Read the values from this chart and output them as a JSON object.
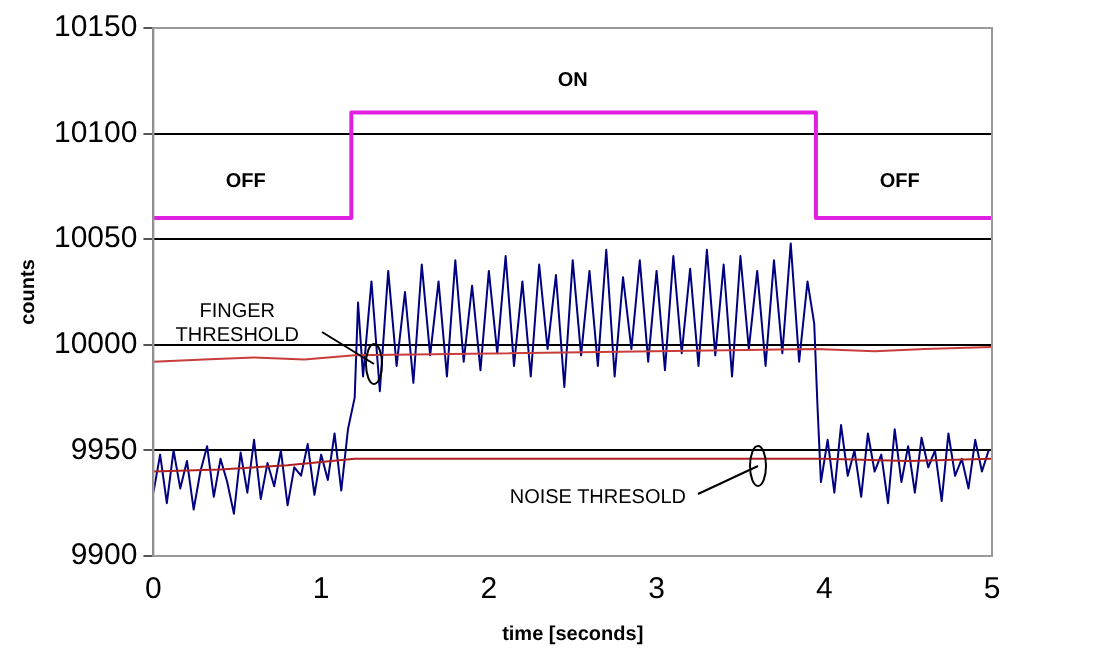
{
  "chart_data": {
    "type": "line",
    "xlabel": "time [seconds]",
    "ylabel": "counts",
    "xlim": [
      0,
      5
    ],
    "xticks": [
      0,
      1,
      2,
      3,
      4,
      5
    ],
    "ylim": [
      9900,
      10150
    ],
    "yticks": [
      9900,
      9950,
      10000,
      10050,
      10100,
      10150
    ],
    "grid": "y",
    "legend": false,
    "annotations": [
      "OFF",
      "ON",
      "OFF",
      "FINGER\nTHRESHOLD",
      "NOISE THRESOLD"
    ],
    "series": [
      {
        "color": "#000080",
        "x": [
          0,
          0.04,
          0.08,
          0.12,
          0.16,
          0.2,
          0.24,
          0.28,
          0.32,
          0.36,
          0.4,
          0.44,
          0.48,
          0.52,
          0.56,
          0.6,
          0.64,
          0.68,
          0.72,
          0.76,
          0.8,
          0.84,
          0.88,
          0.92,
          0.96,
          1,
          1.04,
          1.08,
          1.12,
          1.16,
          1.2,
          1.22,
          1.25,
          1.3,
          1.35,
          1.4,
          1.45,
          1.5,
          1.55,
          1.6,
          1.65,
          1.7,
          1.75,
          1.8,
          1.85,
          1.9,
          1.95,
          2,
          2.05,
          2.1,
          2.15,
          2.2,
          2.25,
          2.3,
          2.35,
          2.4,
          2.45,
          2.5,
          2.55,
          2.6,
          2.65,
          2.7,
          2.75,
          2.8,
          2.85,
          2.9,
          2.95,
          3,
          3.05,
          3.1,
          3.15,
          3.2,
          3.25,
          3.3,
          3.35,
          3.4,
          3.45,
          3.5,
          3.55,
          3.6,
          3.65,
          3.7,
          3.75,
          3.8,
          3.85,
          3.9,
          3.94,
          3.96,
          3.98,
          4.02,
          4.06,
          4.1,
          4.14,
          4.18,
          4.22,
          4.26,
          4.3,
          4.34,
          4.38,
          4.42,
          4.46,
          4.5,
          4.54,
          4.58,
          4.62,
          4.66,
          4.7,
          4.74,
          4.78,
          4.82,
          4.86,
          4.9,
          4.94,
          4.98
        ],
        "values": [
          9930,
          9948,
          9925,
          9950,
          9932,
          9945,
          9922,
          9940,
          9952,
          9928,
          9946,
          9935,
          9920,
          9949,
          9930,
          9955,
          9927,
          9944,
          9933,
          9950,
          9924,
          9942,
          9938,
          9953,
          9929,
          9948,
          9936,
          9958,
          9931,
          9960,
          9975,
          10020,
          9985,
          10030,
          9978,
          10035,
          9990,
          10025,
          9982,
          10038,
          9995,
          10030,
          9985,
          10040,
          9992,
          10028,
          9988,
          10035,
          9996,
          10042,
          9990,
          10030,
          9985,
          10038,
          9998,
          10033,
          9980,
          10040,
          9995,
          10035,
          9990,
          10045,
          9985,
          10032,
          9998,
          10040,
          9992,
          10035,
          9988,
          10042,
          9996,
          10036,
          9990,
          10045,
          9995,
          10038,
          9985,
          10042,
          9998,
          10035,
          9990,
          10040,
          9996,
          10048,
          9992,
          10030,
          10010,
          9970,
          9935,
          9955,
          9930,
          9962,
          9938,
          9950,
          9928,
          9958,
          9940,
          9948,
          9925,
          9960,
          9935,
          9952,
          9930,
          9956,
          9942,
          9950,
          9926,
          9958,
          9938,
          9946,
          9932,
          9955,
          9940,
          9950
        ]
      },
      {
        "color": "#c83c3c",
        "x": [
          0,
          0.3,
          0.6,
          0.9,
          1.2,
          3.95,
          4.3,
          4.6,
          5
        ],
        "values": [
          9992,
          9993,
          9994,
          9993,
          9995,
          9998,
          9997,
          9998,
          9999
        ]
      },
      {
        "color": "#b02020",
        "x": [
          0,
          0.4,
          0.8,
          1.2,
          2,
          3,
          4,
          4.5,
          5
        ],
        "values": [
          9940,
          9941,
          9943,
          9946,
          9946,
          9946,
          9946,
          9945,
          9946
        ]
      },
      {
        "type": "step",
        "color": "#e020e0",
        "x": [
          0,
          1.18,
          3.95,
          5
        ],
        "values": [
          10060,
          10110,
          10060,
          10060
        ]
      }
    ]
  }
}
